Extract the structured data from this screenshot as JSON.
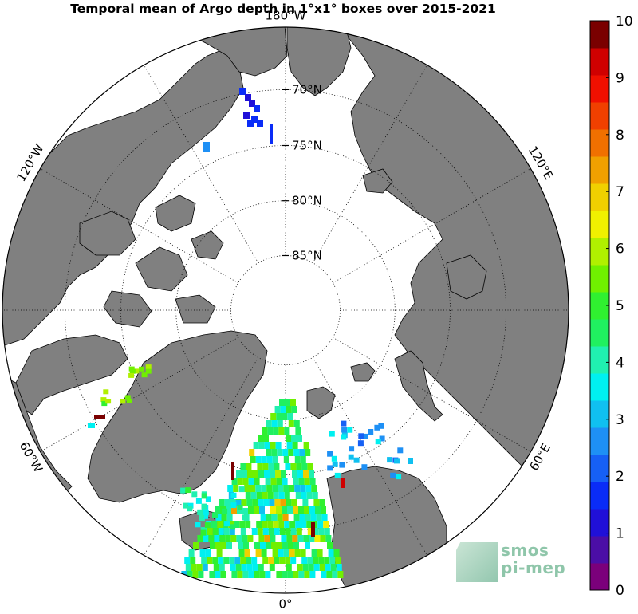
{
  "title": "Temporal mean of Argo depth in 1°x1° boxes over 2015-2021",
  "map": {
    "projection": "north-polar-stereographic",
    "lon_labels": [
      {
        "text": "180°W",
        "lon": 180
      },
      {
        "text": "120°W",
        "lon": -120
      },
      {
        "text": "120°E",
        "lon": 120
      },
      {
        "text": "60°W",
        "lon": -60
      },
      {
        "text": "60°E",
        "lon": 60
      },
      {
        "text": "0°",
        "lon": 0
      }
    ],
    "lat_labels": [
      {
        "text": "70°N",
        "lat": 70
      },
      {
        "text": "75°N",
        "lat": 75
      },
      {
        "text": "80°N",
        "lat": 80
      },
      {
        "text": "85°N",
        "lat": 85
      }
    ],
    "land_color": "#808080",
    "ocean_color": "#ffffff"
  },
  "colorbar": {
    "min": 0,
    "max": 10,
    "ticks": [
      "0",
      "1",
      "2",
      "3",
      "4",
      "5",
      "6",
      "7",
      "8",
      "9",
      "10"
    ],
    "colors": [
      "#7b007b",
      "#4b0ea6",
      "#2010d8",
      "#0a2cf7",
      "#1660f5",
      "#1e90f5",
      "#10c0f0",
      "#00f0f0",
      "#20f0b0",
      "#20f060",
      "#30f030",
      "#70f000",
      "#b0f000",
      "#f0f000",
      "#f0d000",
      "#f0a000",
      "#f07000",
      "#f04000",
      "#f01000",
      "#d00000",
      "#7a0000"
    ]
  },
  "logo": {
    "line1": "smos",
    "line2": "pi-mep"
  }
}
